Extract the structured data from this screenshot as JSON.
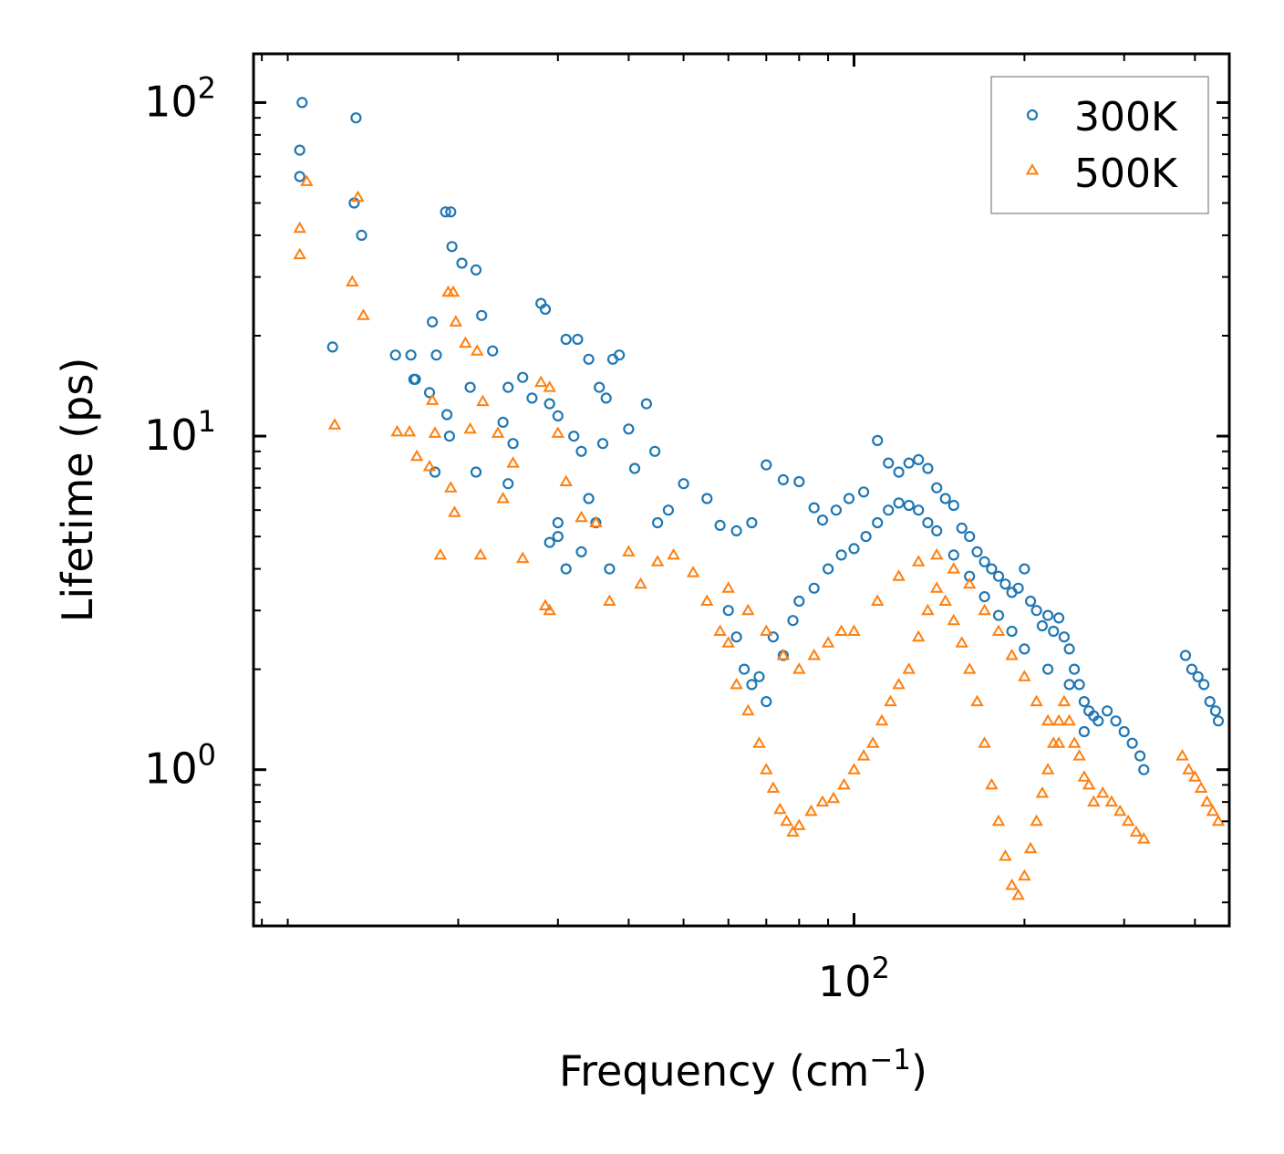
{
  "chart_data": {
    "type": "scatter",
    "title": "",
    "xlabel": "Frequency (cm",
    "xlabel_sup": "−1",
    "xlabel_suffix": ")",
    "ylabel": "Lifetime (ps)",
    "xscale": "log",
    "yscale": "log",
    "xlim": [
      8.7,
      460
    ],
    "ylim": [
      0.34,
      140
    ],
    "x_major_ticks": [
      {
        "value": 100,
        "base": "10",
        "exp": "2"
      }
    ],
    "y_major_ticks": [
      {
        "value": 1,
        "base": "10",
        "exp": "0"
      },
      {
        "value": 10,
        "base": "10",
        "exp": "1"
      },
      {
        "value": 100,
        "base": "10",
        "exp": "2"
      }
    ],
    "legend_position": "top-right",
    "series": [
      {
        "name": "300K",
        "marker": "circle",
        "color": "#1f77b4",
        "points": [
          [
            10.6,
            100
          ],
          [
            10.5,
            72
          ],
          [
            10.5,
            60
          ],
          [
            13.2,
            90
          ],
          [
            13.1,
            50
          ],
          [
            13.5,
            40
          ],
          [
            12.0,
            18.5
          ],
          [
            15.5,
            17.5
          ],
          [
            16.5,
            17.5
          ],
          [
            16.8,
            14.8
          ],
          [
            16.7,
            14.8
          ],
          [
            18.0,
            22
          ],
          [
            18.3,
            17.5
          ],
          [
            17.8,
            13.5
          ],
          [
            18.2,
            7.8
          ],
          [
            19.0,
            47
          ],
          [
            19.4,
            47
          ],
          [
            19.5,
            37
          ],
          [
            19.1,
            11.6
          ],
          [
            19.3,
            10.0
          ],
          [
            20.3,
            33
          ],
          [
            21.5,
            31.5
          ],
          [
            21.0,
            14
          ],
          [
            22.0,
            23
          ],
          [
            21.5,
            7.8
          ],
          [
            23.0,
            18
          ],
          [
            24.5,
            14
          ],
          [
            24.0,
            11
          ],
          [
            25.0,
            9.5
          ],
          [
            24.5,
            7.2
          ],
          [
            26,
            15
          ],
          [
            27,
            13
          ],
          [
            28,
            25
          ],
          [
            28.5,
            24
          ],
          [
            29,
            12.5
          ],
          [
            30,
            11.5
          ],
          [
            31,
            19.5
          ],
          [
            32.5,
            19.5
          ],
          [
            34,
            17
          ],
          [
            35.5,
            14
          ],
          [
            36.5,
            13
          ],
          [
            37.5,
            17
          ],
          [
            38.5,
            17.5
          ],
          [
            36,
            9.5
          ],
          [
            40,
            10.5
          ],
          [
            41,
            8
          ],
          [
            43,
            12.5
          ],
          [
            44.5,
            9
          ],
          [
            32,
            10
          ],
          [
            33,
            9
          ],
          [
            34,
            6.5
          ],
          [
            35,
            5.5
          ],
          [
            30,
            5.5
          ],
          [
            30,
            5
          ],
          [
            29,
            4.8
          ],
          [
            31,
            4
          ],
          [
            33,
            4.5
          ],
          [
            37,
            4
          ],
          [
            45,
            5.5
          ],
          [
            47,
            6
          ],
          [
            50,
            7.2
          ],
          [
            55,
            6.5
          ],
          [
            58,
            5.4
          ],
          [
            62,
            5.2
          ],
          [
            66,
            5.5
          ],
          [
            70,
            8.2
          ],
          [
            75,
            7.4
          ],
          [
            80,
            7.3
          ],
          [
            85,
            6.1
          ],
          [
            88,
            5.6
          ],
          [
            93,
            6.0
          ],
          [
            98,
            6.5
          ],
          [
            104,
            6.8
          ],
          [
            110,
            9.7
          ],
          [
            115,
            8.3
          ],
          [
            120,
            7.8
          ],
          [
            125,
            8.3
          ],
          [
            130,
            8.5
          ],
          [
            135,
            8.0
          ],
          [
            140,
            7.0
          ],
          [
            145,
            6.5
          ],
          [
            150,
            6.2
          ],
          [
            155,
            5.3
          ],
          [
            160,
            5.0
          ],
          [
            165,
            4.5
          ],
          [
            170,
            4.2
          ],
          [
            175,
            4.0
          ],
          [
            180,
            3.8
          ],
          [
            185,
            3.6
          ],
          [
            190,
            3.4
          ],
          [
            195,
            3.5
          ],
          [
            200,
            4.0
          ],
          [
            205,
            3.2
          ],
          [
            210,
            3.0
          ],
          [
            215,
            2.7
          ],
          [
            220,
            2.9
          ],
          [
            225,
            2.6
          ],
          [
            230,
            2.85
          ],
          [
            235,
            2.5
          ],
          [
            240,
            2.3
          ],
          [
            245,
            2.0
          ],
          [
            250,
            1.8
          ],
          [
            255,
            1.6
          ],
          [
            260,
            1.5
          ],
          [
            265,
            1.45
          ],
          [
            280,
            1.5
          ],
          [
            290,
            1.4
          ],
          [
            300,
            1.3
          ],
          [
            310,
            1.2
          ],
          [
            320,
            1.1
          ],
          [
            325,
            1.0
          ],
          [
            385,
            2.2
          ],
          [
            395,
            2.0
          ],
          [
            405,
            1.9
          ],
          [
            415,
            1.8
          ],
          [
            425,
            1.6
          ],
          [
            435,
            1.5
          ],
          [
            440,
            1.4
          ],
          [
            60,
            3.0
          ],
          [
            62,
            2.5
          ],
          [
            64,
            2.0
          ],
          [
            66,
            1.8
          ],
          [
            68,
            1.9
          ],
          [
            70,
            1.6
          ],
          [
            72,
            2.5
          ],
          [
            75,
            2.2
          ],
          [
            78,
            2.8
          ],
          [
            80,
            3.2
          ],
          [
            85,
            3.5
          ],
          [
            90,
            4.0
          ],
          [
            95,
            4.4
          ],
          [
            100,
            4.6
          ],
          [
            105,
            5.0
          ],
          [
            110,
            5.5
          ],
          [
            115,
            6.0
          ],
          [
            120,
            6.3
          ],
          [
            125,
            6.2
          ],
          [
            130,
            6.0
          ],
          [
            135,
            5.5
          ],
          [
            140,
            5.2
          ],
          [
            150,
            4.4
          ],
          [
            160,
            3.8
          ],
          [
            170,
            3.3
          ],
          [
            180,
            2.9
          ],
          [
            190,
            2.6
          ],
          [
            200,
            2.3
          ],
          [
            220,
            2.0
          ],
          [
            240,
            1.8
          ],
          [
            255,
            1.3
          ],
          [
            270,
            1.4
          ]
        ]
      },
      {
        "name": "500K",
        "marker": "triangle",
        "color": "#ff7f0e",
        "points": [
          [
            10.8,
            58
          ],
          [
            10.5,
            42
          ],
          [
            10.5,
            35
          ],
          [
            13.3,
            52
          ],
          [
            13.0,
            29
          ],
          [
            13.6,
            23
          ],
          [
            12.1,
            10.8
          ],
          [
            15.6,
            10.3
          ],
          [
            16.4,
            10.3
          ],
          [
            16.9,
            8.7
          ],
          [
            17.8,
            8.1
          ],
          [
            18.2,
            10.2
          ],
          [
            18.0,
            12.8
          ],
          [
            18.6,
            4.4
          ],
          [
            19.2,
            27
          ],
          [
            19.6,
            27
          ],
          [
            19.8,
            22
          ],
          [
            19.4,
            7.0
          ],
          [
            19.7,
            5.9
          ],
          [
            20.6,
            19
          ],
          [
            21.6,
            18
          ],
          [
            21.0,
            10.5
          ],
          [
            22.1,
            12.7
          ],
          [
            21.9,
            4.4
          ],
          [
            23.5,
            10.2
          ],
          [
            25,
            8.3
          ],
          [
            24,
            6.5
          ],
          [
            26,
            4.3
          ],
          [
            28,
            14.5
          ],
          [
            29,
            14
          ],
          [
            30,
            10.2
          ],
          [
            28.5,
            3.1
          ],
          [
            29,
            3.0
          ],
          [
            31,
            7.3
          ],
          [
            33,
            5.7
          ],
          [
            35,
            5.5
          ],
          [
            37,
            3.2
          ],
          [
            40,
            4.5
          ],
          [
            42,
            3.6
          ],
          [
            45,
            4.2
          ],
          [
            48,
            4.4
          ],
          [
            52,
            3.9
          ],
          [
            55,
            3.2
          ],
          [
            58,
            2.6
          ],
          [
            60,
            2.4
          ],
          [
            62,
            1.8
          ],
          [
            65,
            1.5
          ],
          [
            68,
            1.2
          ],
          [
            70,
            1.0
          ],
          [
            72,
            0.88
          ],
          [
            74,
            0.76
          ],
          [
            76,
            0.7
          ],
          [
            78,
            0.65
          ],
          [
            80,
            0.68
          ],
          [
            84,
            0.75
          ],
          [
            88,
            0.8
          ],
          [
            92,
            0.82
          ],
          [
            96,
            0.9
          ],
          [
            100,
            1.0
          ],
          [
            104,
            1.1
          ],
          [
            108,
            1.2
          ],
          [
            112,
            1.4
          ],
          [
            116,
            1.6
          ],
          [
            120,
            1.8
          ],
          [
            125,
            2.0
          ],
          [
            130,
            2.5
          ],
          [
            135,
            3.0
          ],
          [
            140,
            3.5
          ],
          [
            145,
            3.2
          ],
          [
            150,
            2.8
          ],
          [
            155,
            2.4
          ],
          [
            160,
            2.0
          ],
          [
            165,
            1.6
          ],
          [
            170,
            1.2
          ],
          [
            175,
            0.9
          ],
          [
            180,
            0.7
          ],
          [
            185,
            0.55
          ],
          [
            190,
            0.45
          ],
          [
            195,
            0.42
          ],
          [
            200,
            0.48
          ],
          [
            205,
            0.58
          ],
          [
            210,
            0.7
          ],
          [
            215,
            0.85
          ],
          [
            220,
            1.0
          ],
          [
            225,
            1.2
          ],
          [
            230,
            1.4
          ],
          [
            235,
            1.6
          ],
          [
            240,
            1.4
          ],
          [
            245,
            1.2
          ],
          [
            250,
            1.1
          ],
          [
            255,
            0.95
          ],
          [
            260,
            0.9
          ],
          [
            265,
            0.8
          ],
          [
            275,
            0.85
          ],
          [
            285,
            0.8
          ],
          [
            295,
            0.75
          ],
          [
            305,
            0.7
          ],
          [
            315,
            0.65
          ],
          [
            325,
            0.62
          ],
          [
            380,
            1.1
          ],
          [
            390,
            1.0
          ],
          [
            400,
            0.95
          ],
          [
            410,
            0.88
          ],
          [
            420,
            0.8
          ],
          [
            430,
            0.75
          ],
          [
            440,
            0.7
          ],
          [
            60,
            3.5
          ],
          [
            65,
            3.0
          ],
          [
            70,
            2.6
          ],
          [
            75,
            2.2
          ],
          [
            80,
            2.0
          ],
          [
            85,
            2.2
          ],
          [
            90,
            2.4
          ],
          [
            95,
            2.6
          ],
          [
            100,
            2.6
          ],
          [
            110,
            3.2
          ],
          [
            120,
            3.8
          ],
          [
            130,
            4.2
          ],
          [
            140,
            4.4
          ],
          [
            150,
            4.0
          ],
          [
            160,
            3.6
          ],
          [
            170,
            3.0
          ],
          [
            180,
            2.6
          ],
          [
            190,
            2.2
          ],
          [
            200,
            1.9
          ],
          [
            210,
            1.6
          ],
          [
            220,
            1.4
          ],
          [
            230,
            1.2
          ]
        ]
      }
    ]
  }
}
